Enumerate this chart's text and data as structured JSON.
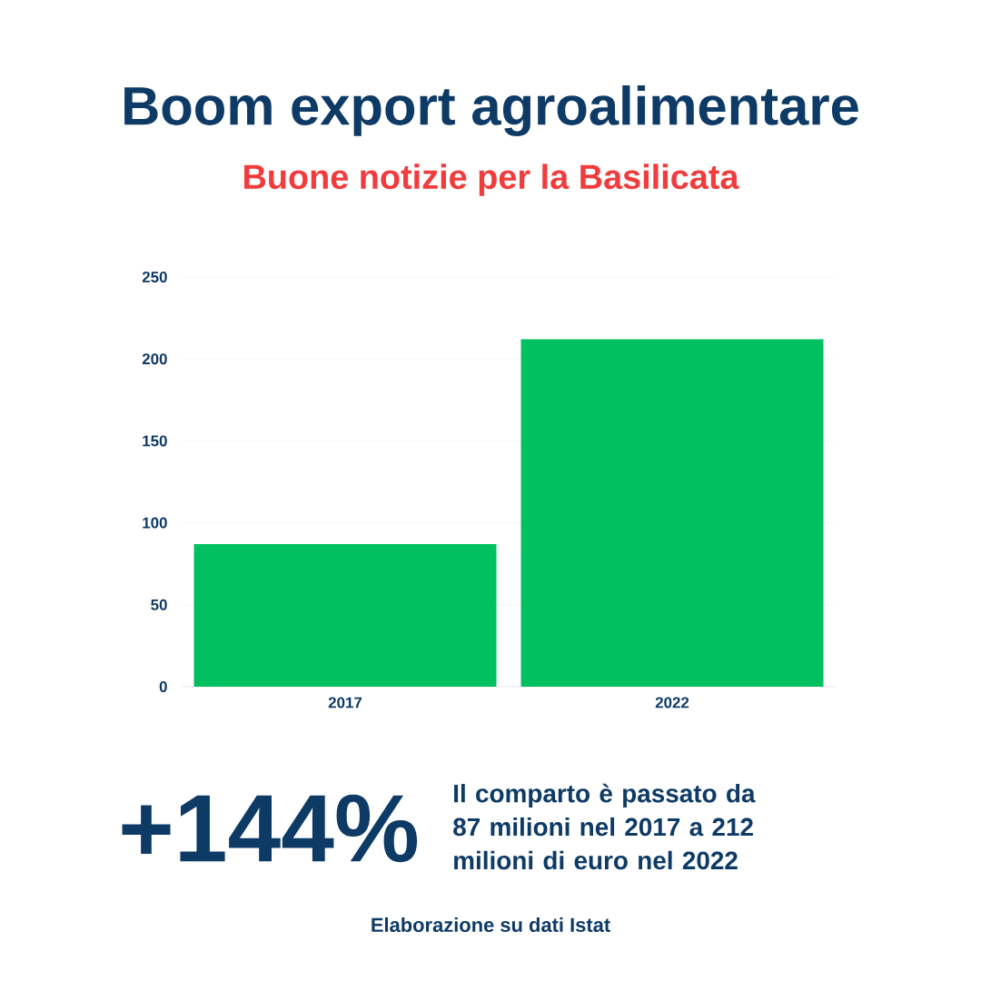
{
  "chart_data": {
    "type": "bar",
    "title": "Boom export agroalimentare",
    "subtitle": "Buone notizie per la Basilicata",
    "categories": [
      "2017",
      "2022"
    ],
    "values": [
      87,
      212
    ],
    "color": "#00c060",
    "ylim": [
      0,
      250
    ],
    "yticks": [
      0,
      50,
      100,
      150,
      200,
      250
    ],
    "grid": "y",
    "annotations": [
      "+144%",
      "Il comparto è passato da 87 milioni nel 2017 a 212 milioni di euro nel 2022",
      "Elaborazione su dati Istat"
    ]
  }
}
